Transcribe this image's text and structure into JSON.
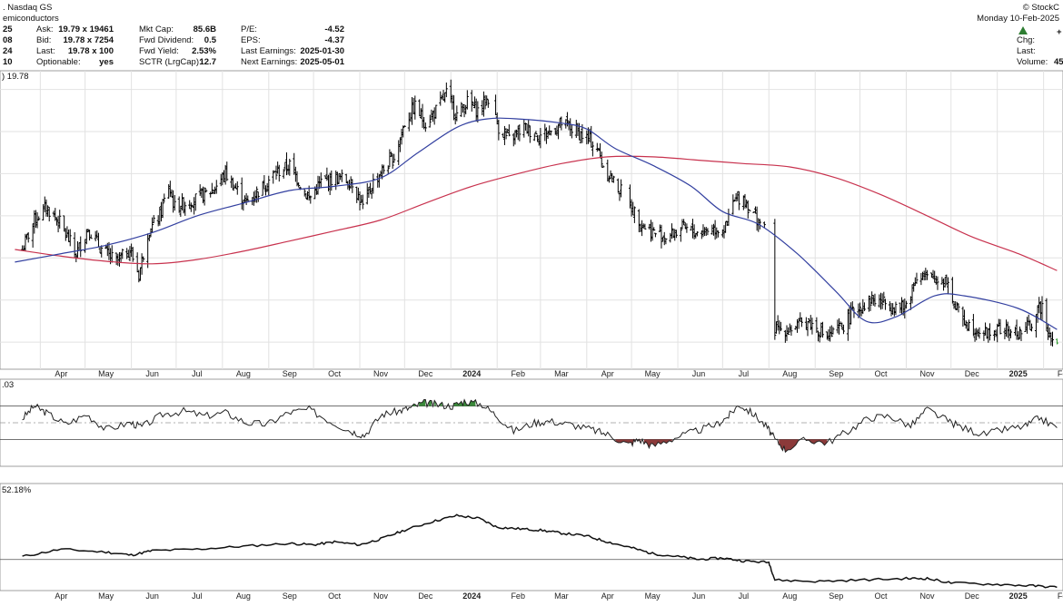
{
  "header": {
    "exchange": ". Nasdaq GS",
    "name_fragment": "emiconductors",
    "brand": "© StockC",
    "date": "Monday  10-Feb-2025",
    "left_values": [
      "25",
      "08",
      "24",
      "10"
    ],
    "quote_rows": [
      {
        "label": "Ask:",
        "value": "19.79 x 19461"
      },
      {
        "label": "Bid:",
        "value": "19.78 x 7254"
      },
      {
        "label": "Last:",
        "value": "19.78 x 100"
      },
      {
        "label": "Optionable:",
        "value": "yes"
      }
    ],
    "fund_rows": [
      {
        "label": "Mkt Cap:",
        "value": "85.6B"
      },
      {
        "label": "Fwd Dividend:",
        "value": "0.5"
      },
      {
        "label": "Fwd Yield:",
        "value": "2.53%"
      },
      {
        "label": "SCTR (LrgCap):",
        "value": "12.7"
      }
    ],
    "earn_rows": [
      {
        "label": "P/E:",
        "value": "-4.52"
      },
      {
        "label": "EPS:",
        "value": "-4.37"
      },
      {
        "label": "Last Earnings:",
        "value": "2025-01-30"
      },
      {
        "label": "Next Earnings:",
        "value": "2025-05-01"
      }
    ],
    "right_rows": [
      {
        "label": "Chg:",
        "value": ""
      },
      {
        "label": "Last:",
        "value": ""
      },
      {
        "label": "Volume:",
        "value": "45,"
      }
    ],
    "up_color": "#2e7d32",
    "plus_sign": "+"
  },
  "colors": {
    "bars": "#000000",
    "sma_fast": "#3340a0",
    "sma_slow": "#c8324e",
    "grid": "#e2e2e2",
    "osc_over": "#3a8a3a",
    "osc_under": "#8b3a3a",
    "last_bar": "#2e9a2e"
  },
  "chart_data": [
    {
      "type": "ohlc",
      "price_label": ") 19.78",
      "x_labels": [
        "Apr",
        "May",
        "Jun",
        "Jul",
        "Aug",
        "Sep",
        "Oct",
        "Nov",
        "Dec",
        "2024",
        "Feb",
        "Mar",
        "Apr",
        "May",
        "Jun",
        "Jul",
        "Aug",
        "Sep",
        "Oct",
        "Nov",
        "Dec",
        "2025",
        "Feb"
      ],
      "ylim": [
        17,
        52
      ],
      "close_path": [
        [
          "2023-03-20",
          31.0
        ],
        [
          "2023-03-28",
          34.5
        ],
        [
          "2023-04-05",
          36.0
        ],
        [
          "2023-04-14",
          34.2
        ],
        [
          "2023-04-25",
          30.5
        ],
        [
          "2023-05-03",
          33.5
        ],
        [
          "2023-05-12",
          31.0
        ],
        [
          "2023-05-22",
          29.5
        ],
        [
          "2023-05-31",
          31.0
        ],
        [
          "2023-06-06",
          28.0
        ],
        [
          "2023-06-12",
          33.0
        ],
        [
          "2023-06-20",
          35.0
        ],
        [
          "2023-06-26",
          38.5
        ],
        [
          "2023-06-30",
          36.0
        ],
        [
          "2023-07-14",
          37.0
        ],
        [
          "2023-07-25",
          38.0
        ],
        [
          "2023-08-03",
          40.0
        ],
        [
          "2023-08-17",
          36.5
        ],
        [
          "2023-08-28",
          38.5
        ],
        [
          "2023-09-05",
          40.0
        ],
        [
          "2023-09-15",
          41.0
        ],
        [
          "2023-09-28",
          37.0
        ],
        [
          "2023-10-06",
          39.0
        ],
        [
          "2023-10-18",
          39.5
        ],
        [
          "2023-10-27",
          39.0
        ],
        [
          "2023-11-03",
          36.0
        ],
        [
          "2023-11-10",
          39.0
        ],
        [
          "2023-11-24",
          42.0
        ],
        [
          "2023-12-01",
          46.0
        ],
        [
          "2023-12-08",
          48.0
        ],
        [
          "2023-12-15",
          46.0
        ],
        [
          "2023-12-22",
          47.5
        ],
        [
          "2023-12-29",
          49.5
        ],
        [
          "2024-01-05",
          47.0
        ],
        [
          "2024-01-12",
          48.5
        ],
        [
          "2024-01-19",
          47.5
        ],
        [
          "2024-01-26",
          49.0
        ],
        [
          "2024-02-02",
          45.5
        ],
        [
          "2024-02-09",
          44.0
        ],
        [
          "2024-02-19",
          45.5
        ],
        [
          "2024-02-29",
          44.5
        ],
        [
          "2024-03-08",
          45.0
        ],
        [
          "2024-03-15",
          46.0
        ],
        [
          "2024-03-25",
          45.0
        ],
        [
          "2024-04-03",
          44.0
        ],
        [
          "2024-04-08",
          43.0
        ],
        [
          "2024-04-12",
          41.0
        ],
        [
          "2024-04-19",
          39.0
        ],
        [
          "2024-04-26",
          37.5
        ],
        [
          "2024-05-01",
          36.0
        ],
        [
          "2024-05-08",
          34.0
        ],
        [
          "2024-05-16",
          33.0
        ],
        [
          "2024-05-25",
          32.5
        ],
        [
          "2024-06-04",
          33.5
        ],
        [
          "2024-06-14",
          33.0
        ],
        [
          "2024-06-24",
          33.5
        ],
        [
          "2024-07-03",
          33.5
        ],
        [
          "2024-07-08",
          36.5
        ],
        [
          "2024-07-14",
          37.5
        ],
        [
          "2024-07-20",
          35.5
        ],
        [
          "2024-07-27",
          34.0
        ],
        [
          "2024-08-01",
          32.0
        ],
        [
          "2024-08-03",
          21.5
        ],
        [
          "2024-08-14",
          21.5
        ],
        [
          "2024-08-27",
          22.5
        ],
        [
          "2024-09-10",
          20.5
        ],
        [
          "2024-09-20",
          22.0
        ],
        [
          "2024-09-28",
          24.0
        ],
        [
          "2024-10-09",
          25.0
        ],
        [
          "2024-10-21",
          24.5
        ],
        [
          "2024-10-31",
          24.0
        ],
        [
          "2024-11-08",
          28.0
        ],
        [
          "2024-11-16",
          27.5
        ],
        [
          "2024-11-28",
          27.5
        ],
        [
          "2024-12-04",
          24.0
        ],
        [
          "2024-12-13",
          22.0
        ],
        [
          "2024-12-24",
          21.0
        ],
        [
          "2025-01-03",
          21.5
        ],
        [
          "2025-01-15",
          21.0
        ],
        [
          "2025-01-23",
          22.0
        ],
        [
          "2025-01-31",
          24.5
        ],
        [
          "2025-02-05",
          21.0
        ],
        [
          "2025-02-10",
          19.8
        ]
      ],
      "sma_fast": [
        [
          "2023-03-15",
          29.5
        ],
        [
          "2023-04-15",
          30.5
        ],
        [
          "2023-05-15",
          31.5
        ],
        [
          "2023-06-15",
          33.0
        ],
        [
          "2023-07-15",
          35.0
        ],
        [
          "2023-08-15",
          36.5
        ],
        [
          "2023-09-15",
          38.0
        ],
        [
          "2023-10-15",
          38.5
        ],
        [
          "2023-11-15",
          39.5
        ],
        [
          "2023-12-10",
          42.5
        ],
        [
          "2024-01-05",
          45.5
        ],
        [
          "2024-01-25",
          46.5
        ],
        [
          "2024-02-15",
          46.5
        ],
        [
          "2024-03-15",
          46.0
        ],
        [
          "2024-04-01",
          45.3
        ],
        [
          "2024-04-20",
          43.0
        ],
        [
          "2024-05-15",
          41.0
        ],
        [
          "2024-06-10",
          38.5
        ],
        [
          "2024-07-01",
          35.5
        ],
        [
          "2024-07-25",
          34.0
        ],
        [
          "2024-08-20",
          30.5
        ],
        [
          "2024-09-15",
          26.0
        ],
        [
          "2024-10-05",
          22.5
        ],
        [
          "2024-10-25",
          23.0
        ],
        [
          "2024-11-20",
          25.5
        ],
        [
          "2024-12-10",
          25.5
        ],
        [
          "2025-01-15",
          24.0
        ],
        [
          "2025-02-10",
          21.5
        ]
      ],
      "sma_slow": [
        [
          "2023-03-15",
          31.0
        ],
        [
          "2023-04-15",
          30.2
        ],
        [
          "2023-05-15",
          29.6
        ],
        [
          "2023-06-15",
          29.3
        ],
        [
          "2023-07-15",
          29.8
        ],
        [
          "2023-08-15",
          30.8
        ],
        [
          "2023-09-15",
          32.0
        ],
        [
          "2023-10-15",
          33.2
        ],
        [
          "2023-11-15",
          34.5
        ],
        [
          "2023-12-15",
          36.5
        ],
        [
          "2024-01-15",
          38.5
        ],
        [
          "2024-02-15",
          40.0
        ],
        [
          "2024-03-15",
          41.2
        ],
        [
          "2024-04-15",
          42.0
        ],
        [
          "2024-05-15",
          42.0
        ],
        [
          "2024-06-15",
          41.6
        ],
        [
          "2024-07-15",
          41.2
        ],
        [
          "2024-08-15",
          40.8
        ],
        [
          "2024-09-15",
          39.5
        ],
        [
          "2024-10-15",
          37.5
        ],
        [
          "2024-11-15",
          35.0
        ],
        [
          "2024-12-15",
          32.5
        ],
        [
          "2025-01-15",
          30.5
        ],
        [
          "2025-02-10",
          28.5
        ]
      ]
    },
    {
      "type": "line",
      "label": ".03",
      "ylim": [
        0,
        100
      ],
      "guide_levels": [
        70,
        50,
        30
      ],
      "x": [
        "2023-03-20",
        "2023-03-28",
        "2023-04-05",
        "2023-04-18",
        "2023-05-02",
        "2023-05-15",
        "2023-05-31",
        "2023-06-08",
        "2023-06-22",
        "2023-07-06",
        "2023-07-20",
        "2023-08-03",
        "2023-08-17",
        "2023-08-31",
        "2023-09-14",
        "2023-09-28",
        "2023-10-12",
        "2023-10-26",
        "2023-11-04",
        "2023-11-16",
        "2023-11-27",
        "2023-12-05",
        "2023-12-14",
        "2023-12-22",
        "2024-01-02",
        "2024-01-10",
        "2024-01-22",
        "2024-02-01",
        "2024-02-12",
        "2024-02-26",
        "2024-03-07",
        "2024-03-21",
        "2024-04-04",
        "2024-04-15",
        "2024-04-29",
        "2024-05-06",
        "2024-05-15",
        "2024-05-30",
        "2024-06-13",
        "2024-06-27",
        "2024-07-05",
        "2024-07-12",
        "2024-07-22",
        "2024-07-31",
        "2024-08-05",
        "2024-08-12",
        "2024-08-26",
        "2024-09-09",
        "2024-09-23",
        "2024-10-07",
        "2024-10-21",
        "2024-11-04",
        "2024-11-15",
        "2024-11-29",
        "2024-12-09",
        "2024-12-23",
        "2025-01-06",
        "2025-01-20",
        "2025-01-29",
        "2025-02-10"
      ],
      "y": [
        55,
        70,
        62,
        48,
        60,
        42,
        50,
        45,
        60,
        64,
        58,
        62,
        50,
        48,
        62,
        66,
        52,
        40,
        35,
        60,
        64,
        68,
        74,
        72,
        70,
        76,
        72,
        58,
        40,
        50,
        52,
        48,
        42,
        36,
        24,
        30,
        22,
        32,
        40,
        48,
        58,
        72,
        60,
        44,
        30,
        18,
        30,
        26,
        40,
        56,
        58,
        46,
        66,
        52,
        44,
        36,
        42,
        46,
        56,
        44
      ]
    },
    {
      "type": "line",
      "label": "52.18%",
      "ylim": [
        -10,
        60
      ],
      "zero_level": 10,
      "x": [
        "2023-03-20",
        "2023-04-15",
        "2023-05-15",
        "2023-06-01",
        "2023-06-15",
        "2023-07-15",
        "2023-08-15",
        "2023-09-15",
        "2023-10-01",
        "2023-10-15",
        "2023-11-01",
        "2023-11-15",
        "2023-12-01",
        "2023-12-20",
        "2024-01-05",
        "2024-01-20",
        "2024-02-01",
        "2024-02-15",
        "2024-03-01",
        "2024-03-15",
        "2024-04-01",
        "2024-04-15",
        "2024-05-01",
        "2024-05-15",
        "2024-06-01",
        "2024-06-15",
        "2024-07-01",
        "2024-07-15",
        "2024-08-01",
        "2024-08-05",
        "2024-09-01",
        "2024-10-01",
        "2024-11-01",
        "2024-11-15",
        "2024-12-01",
        "2025-01-01",
        "2025-01-25",
        "2025-02-10"
      ],
      "y": [
        12,
        17,
        15,
        13,
        16,
        17,
        19,
        21,
        20,
        22,
        20,
        24,
        30,
        36,
        40,
        38,
        32,
        31,
        30,
        28,
        26,
        22,
        18,
        14,
        12,
        10,
        11,
        9,
        8,
        -4,
        -5,
        -4,
        -3,
        -3,
        -6,
        -7,
        -8,
        -9
      ]
    }
  ]
}
